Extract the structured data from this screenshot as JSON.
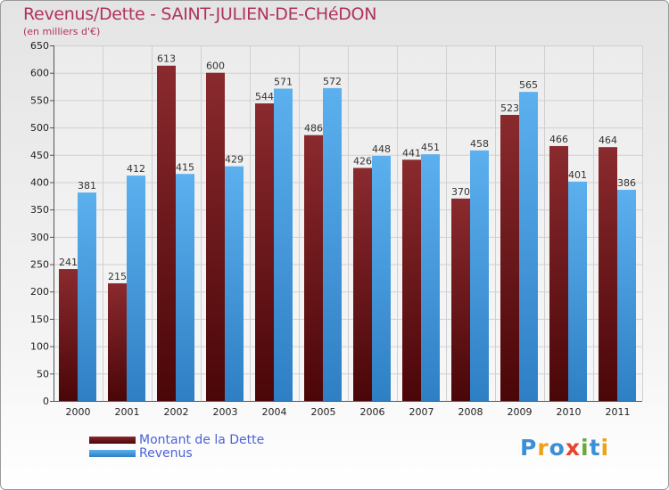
{
  "header": {
    "title": "Revenus/Dette - SAINT-JULIEN-DE-CHéDON",
    "subtitle": "(en milliers d'€)"
  },
  "chart_data": {
    "type": "bar",
    "title": "Revenus/Dette - SAINT-JULIEN-DE-CHéDON",
    "ylabel": "(en milliers d'€)",
    "xlabel": "",
    "categories": [
      "2000",
      "2001",
      "2002",
      "2003",
      "2004",
      "2005",
      "2006",
      "2007",
      "2008",
      "2009",
      "2010",
      "2011"
    ],
    "series": [
      {
        "name": "Montant de la Dette",
        "color": "#7a1d22",
        "values": [
          241,
          215,
          613,
          600,
          544,
          486,
          426,
          441,
          370,
          523,
          466,
          464
        ]
      },
      {
        "name": "Revenus",
        "color": "#4aa3e3",
        "values": [
          381,
          412,
          415,
          429,
          571,
          572,
          448,
          451,
          458,
          565,
          401,
          386
        ]
      }
    ],
    "ylim": [
      0,
      650
    ],
    "yticks": [
      0,
      50,
      100,
      150,
      200,
      250,
      300,
      350,
      400,
      450,
      500,
      550,
      600,
      650
    ],
    "grid": true,
    "legend_position": "bottom-left"
  },
  "legend": {
    "items": [
      {
        "label": "Montant de la Dette",
        "color": "#6b1518"
      },
      {
        "label": "Revenus",
        "color": "#4aa3e3"
      }
    ]
  },
  "logo": {
    "letters": [
      {
        "ch": "P",
        "color": "#3b8fd6"
      },
      {
        "ch": "r",
        "color": "#f0a11a"
      },
      {
        "ch": "o",
        "color": "#3b8fd6"
      },
      {
        "ch": "x",
        "color": "#e8432e"
      },
      {
        "ch": "i",
        "color": "#6aa93c"
      },
      {
        "ch": "t",
        "color": "#3b8fd6"
      },
      {
        "ch": "i",
        "color": "#f0a11a"
      }
    ]
  }
}
